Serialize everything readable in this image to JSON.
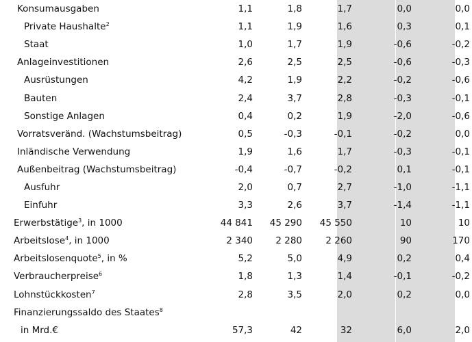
{
  "rows": [
    {
      "label": "Konsumausgaben",
      "sup": "",
      "indent": 1,
      "values": [
        "1,1",
        "1,8",
        "1,7",
        "0,0",
        "0,0"
      ]
    },
    {
      "label": "Private Haushalte",
      "sup": "2",
      "indent": 2,
      "values": [
        "1,1",
        "1,9",
        "1,6",
        "0,3",
        "0,1"
      ]
    },
    {
      "label": "Staat",
      "sup": "",
      "indent": 2,
      "values": [
        "1,0",
        "1,7",
        "1,9",
        "-0,6",
        "-0,2"
      ]
    },
    {
      "label": "Anlageinvestitionen",
      "sup": "",
      "indent": 1,
      "values": [
        "2,6",
        "2,5",
        "2,5",
        "-0,6",
        "-0,3"
      ]
    },
    {
      "label": "Ausrüstungen",
      "sup": "",
      "indent": 2,
      "values": [
        "4,2",
        "1,9",
        "2,2",
        "-0,2",
        "-0,6"
      ]
    },
    {
      "label": "Bauten",
      "sup": "",
      "indent": 2,
      "values": [
        "2,4",
        "3,7",
        "2,8",
        "-0,3",
        "-0,1"
      ]
    },
    {
      "label": "Sonstige Anlagen",
      "sup": "",
      "indent": 2,
      "values": [
        "0,4",
        "0,2",
        "1,9",
        "-2,0",
        "-0,6"
      ]
    },
    {
      "label": "Vorratsveränd. (Wachstumsbeitrag)",
      "sup": "",
      "indent": 1,
      "values": [
        "0,5",
        "-0,3",
        "-0,1",
        "-0,2",
        "0,0"
      ]
    },
    {
      "label": "Inländische Verwendung",
      "sup": "",
      "indent": 1,
      "values": [
        "1,9",
        "1,6",
        "1,7",
        "-0,3",
        "-0,1"
      ]
    },
    {
      "label": "Außenbeitrag (Wachstumsbeitrag)",
      "sup": "",
      "indent": 1,
      "values": [
        "-0,4",
        "-0,7",
        "-0,2",
        "0,1",
        "-0,1"
      ]
    },
    {
      "label": "Ausfuhr",
      "sup": "",
      "indent": 2,
      "values": [
        "2,0",
        "0,7",
        "2,7",
        "-1,0",
        "-1,1"
      ]
    },
    {
      "label": "Einfuhr",
      "sup": "",
      "indent": 2,
      "values": [
        "3,3",
        "2,6",
        "3,7",
        "-1,4",
        "-1,1"
      ]
    },
    {
      "label": "Erwerbstätige",
      "sup": "3",
      "suffix": ", in 1000",
      "indent": 0,
      "values": [
        "44 841",
        "45 290",
        "45 550",
        "10",
        "10"
      ]
    },
    {
      "label": "Arbeitslose",
      "sup": "4",
      "suffix": ", in 1000",
      "indent": 0,
      "values": [
        "2 340",
        "2 280",
        "2 260",
        "90",
        "170"
      ]
    },
    {
      "label": "Arbeitslosenquote",
      "sup": "5",
      "suffix": ", in %",
      "indent": 0,
      "values": [
        "5,2",
        "5,0",
        "4,9",
        "0,2",
        "0,4"
      ]
    },
    {
      "label": "Verbraucherpreise",
      "sup": "6",
      "indent": 0,
      "values": [
        "1,8",
        "1,3",
        "1,4",
        "-0,1",
        "-0,2"
      ]
    },
    {
      "label": "Lohnstückkosten",
      "sup": "7",
      "indent": 0,
      "values": [
        "2,8",
        "3,5",
        "2,0",
        "0,2",
        "0,0"
      ]
    },
    {
      "label": "Finanzierungssaldo des Staates",
      "sup": "8",
      "indent": 0,
      "values": [
        "",
        "",
        "",
        "",
        ""
      ]
    },
    {
      "label": "in Mrd.€",
      "sup": "",
      "indent": 3,
      "values": [
        "57,3",
        "42",
        "32",
        "6,0",
        "2,0"
      ]
    }
  ]
}
